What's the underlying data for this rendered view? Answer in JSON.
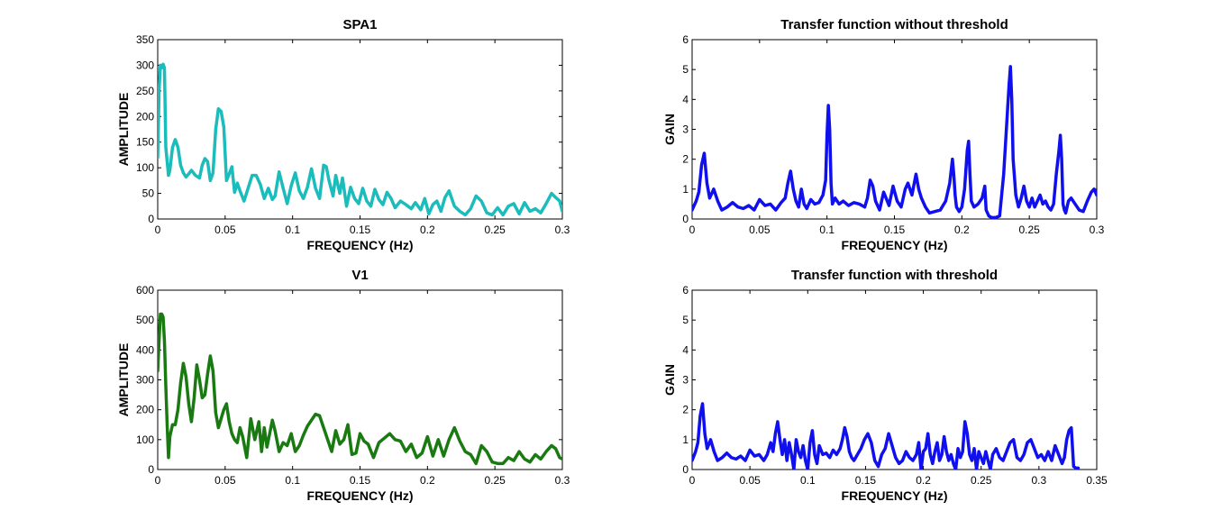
{
  "colors": {
    "spa1": "#1abcbc",
    "v1": "#1a7a12",
    "transfer": "#1010ee"
  },
  "chart_data": [
    {
      "type": "line",
      "title": "SPA1",
      "xlabel": "FREQUENCY (Hz)",
      "ylabel": "AMPLITUDE",
      "xlim": [
        0,
        0.3
      ],
      "ylim": [
        0,
        350
      ],
      "xticks": [
        "0",
        "0.05",
        "0.1",
        "0.15",
        "0.2",
        "0.25",
        "0.3"
      ],
      "yticks": [
        "0",
        "50",
        "100",
        "150",
        "200",
        "250",
        "300",
        "350"
      ],
      "grid": false,
      "series": [
        {
          "color_key": "spa1",
          "x": [
            0,
            0.001,
            0.002,
            0.003,
            0.004,
            0.005,
            0.006,
            0.008,
            0.009,
            0.011,
            0.013,
            0.015,
            0.017,
            0.019,
            0.021,
            0.023,
            0.025,
            0.028,
            0.031,
            0.033,
            0.035,
            0.037,
            0.039,
            0.041,
            0.043,
            0.045,
            0.047,
            0.049,
            0.051,
            0.053,
            0.055,
            0.057,
            0.059,
            0.061,
            0.064,
            0.067,
            0.07,
            0.073,
            0.076,
            0.079,
            0.082,
            0.085,
            0.087,
            0.09,
            0.093,
            0.096,
            0.099,
            0.102,
            0.105,
            0.108,
            0.111,
            0.114,
            0.117,
            0.12,
            0.123,
            0.125,
            0.127,
            0.13,
            0.132,
            0.135,
            0.137,
            0.14,
            0.143,
            0.146,
            0.149,
            0.152,
            0.155,
            0.158,
            0.161,
            0.164,
            0.167,
            0.17,
            0.173,
            0.176,
            0.18,
            0.184,
            0.188,
            0.191,
            0.195,
            0.198,
            0.201,
            0.204,
            0.207,
            0.21,
            0.213,
            0.216,
            0.22,
            0.224,
            0.228,
            0.232,
            0.236,
            0.24,
            0.244,
            0.248,
            0.252,
            0.256,
            0.26,
            0.264,
            0.268,
            0.272,
            0.276,
            0.28,
            0.284,
            0.288,
            0.292,
            0.295,
            0.298,
            0.3
          ],
          "y": [
            120,
            250,
            300,
            295,
            302,
            295,
            140,
            85,
            95,
            140,
            155,
            140,
            105,
            90,
            82,
            88,
            95,
            85,
            80,
            105,
            118,
            112,
            75,
            90,
            175,
            215,
            210,
            180,
            75,
            88,
            102,
            52,
            70,
            55,
            35,
            60,
            85,
            85,
            68,
            40,
            60,
            38,
            45,
            92,
            60,
            30,
            65,
            90,
            55,
            40,
            62,
            98,
            60,
            40,
            105,
            102,
            75,
            45,
            85,
            50,
            80,
            25,
            62,
            40,
            30,
            60,
            35,
            25,
            58,
            38,
            28,
            52,
            40,
            22,
            35,
            28,
            20,
            32,
            18,
            40,
            10,
            28,
            35,
            15,
            42,
            55,
            25,
            15,
            8,
            20,
            45,
            35,
            12,
            8,
            22,
            8,
            25,
            30,
            10,
            32,
            15,
            20,
            12,
            30,
            50,
            42,
            35,
            15
          ]
        }
      ]
    },
    {
      "type": "line",
      "title": "Transfer function without threshold",
      "xlabel": "FREQUENCY (Hz)",
      "ylabel": "GAIN",
      "xlim": [
        0,
        0.3
      ],
      "ylim": [
        0,
        6
      ],
      "xticks": [
        "0",
        "0.05",
        "0.1",
        "0.15",
        "0.2",
        "0.25",
        "0.3"
      ],
      "yticks": [
        "0",
        "1",
        "2",
        "3",
        "4",
        "5",
        "6"
      ],
      "grid": false,
      "series": [
        {
          "color_key": "transfer",
          "x": [
            0,
            0.003,
            0.005,
            0.007,
            0.009,
            0.011,
            0.013,
            0.016,
            0.019,
            0.022,
            0.026,
            0.03,
            0.034,
            0.038,
            0.042,
            0.046,
            0.05,
            0.054,
            0.058,
            0.062,
            0.066,
            0.069,
            0.071,
            0.073,
            0.075,
            0.077,
            0.079,
            0.081,
            0.083,
            0.085,
            0.088,
            0.091,
            0.094,
            0.097,
            0.099,
            0.1,
            0.101,
            0.102,
            0.103,
            0.104,
            0.106,
            0.109,
            0.112,
            0.116,
            0.12,
            0.124,
            0.128,
            0.13,
            0.132,
            0.134,
            0.136,
            0.139,
            0.142,
            0.146,
            0.149,
            0.152,
            0.155,
            0.158,
            0.16,
            0.163,
            0.166,
            0.168,
            0.17,
            0.173,
            0.176,
            0.18,
            0.184,
            0.188,
            0.191,
            0.193,
            0.194,
            0.195,
            0.196,
            0.198,
            0.2,
            0.202,
            0.204,
            0.205,
            0.206,
            0.207,
            0.209,
            0.212,
            0.215,
            0.217,
            0.218,
            0.22,
            0.222,
            0.225,
            0.228,
            0.231,
            0.233,
            0.235,
            0.236,
            0.237,
            0.238,
            0.24,
            0.242,
            0.244,
            0.246,
            0.248,
            0.25,
            0.252,
            0.254,
            0.256,
            0.258,
            0.26,
            0.262,
            0.264,
            0.266,
            0.268,
            0.27,
            0.272,
            0.273,
            0.274,
            0.275,
            0.276,
            0.277,
            0.279,
            0.281,
            0.284,
            0.287,
            0.29,
            0.293,
            0.296,
            0.298,
            0.3
          ],
          "y": [
            0.3,
            0.6,
            0.9,
            1.8,
            2.2,
            1.2,
            0.7,
            1.0,
            0.6,
            0.3,
            0.4,
            0.55,
            0.4,
            0.35,
            0.45,
            0.3,
            0.65,
            0.45,
            0.5,
            0.3,
            0.55,
            0.7,
            1.2,
            1.6,
            1.0,
            0.6,
            0.4,
            1.0,
            0.5,
            0.35,
            0.65,
            0.5,
            0.55,
            0.8,
            1.3,
            2.8,
            3.8,
            3.0,
            1.2,
            0.5,
            0.7,
            0.5,
            0.6,
            0.45,
            0.55,
            0.5,
            0.4,
            0.7,
            1.3,
            1.1,
            0.6,
            0.3,
            0.9,
            0.45,
            1.1,
            0.6,
            0.4,
            1.0,
            1.2,
            0.8,
            1.5,
            1.0,
            0.7,
            0.4,
            0.2,
            0.25,
            0.3,
            0.6,
            1.2,
            2.0,
            1.5,
            0.8,
            0.4,
            0.25,
            0.4,
            1.0,
            2.3,
            2.6,
            1.5,
            0.6,
            0.4,
            0.5,
            0.7,
            1.1,
            0.3,
            0.1,
            0.05,
            0.05,
            0.1,
            1.5,
            3.0,
            4.5,
            5.1,
            4.0,
            2.0,
            0.8,
            0.4,
            0.7,
            1.1,
            0.6,
            0.4,
            0.7,
            0.4,
            0.6,
            0.8,
            0.5,
            0.6,
            0.4,
            0.3,
            0.5,
            1.5,
            2.3,
            2.8,
            2.0,
            0.5,
            0.3,
            0.2,
            0.6,
            0.7,
            0.5,
            0.3,
            0.25,
            0.6,
            0.9,
            1.0,
            0.8
          ]
        }
      ]
    },
    {
      "type": "line",
      "title": "V1",
      "xlabel": "FREQUENCY (Hz)",
      "ylabel": "AMPLITUDE",
      "xlim": [
        0,
        0.3
      ],
      "ylim": [
        0,
        600
      ],
      "xticks": [
        "0",
        "0.05",
        "0.1",
        "0.15",
        "0.2",
        "0.25",
        "0.3"
      ],
      "yticks": [
        "0",
        "100",
        "200",
        "300",
        "400",
        "500",
        "600"
      ],
      "grid": false,
      "series": [
        {
          "color_key": "v1",
          "x": [
            0,
            0.001,
            0.002,
            0.003,
            0.004,
            0.005,
            0.006,
            0.007,
            0.008,
            0.009,
            0.011,
            0.013,
            0.015,
            0.017,
            0.019,
            0.021,
            0.023,
            0.025,
            0.027,
            0.029,
            0.031,
            0.033,
            0.035,
            0.037,
            0.039,
            0.041,
            0.043,
            0.045,
            0.047,
            0.049,
            0.051,
            0.053,
            0.055,
            0.057,
            0.059,
            0.061,
            0.063,
            0.066,
            0.069,
            0.072,
            0.075,
            0.077,
            0.079,
            0.081,
            0.083,
            0.085,
            0.087,
            0.09,
            0.093,
            0.096,
            0.099,
            0.102,
            0.105,
            0.108,
            0.111,
            0.114,
            0.117,
            0.12,
            0.123,
            0.126,
            0.129,
            0.132,
            0.135,
            0.138,
            0.141,
            0.144,
            0.147,
            0.15,
            0.153,
            0.156,
            0.16,
            0.164,
            0.168,
            0.172,
            0.176,
            0.18,
            0.184,
            0.188,
            0.192,
            0.196,
            0.2,
            0.204,
            0.208,
            0.212,
            0.216,
            0.22,
            0.224,
            0.228,
            0.232,
            0.236,
            0.24,
            0.244,
            0.248,
            0.252,
            0.256,
            0.26,
            0.264,
            0.268,
            0.272,
            0.276,
            0.28,
            0.284,
            0.288,
            0.292,
            0.295,
            0.298,
            0.3
          ],
          "y": [
            330,
            430,
            520,
            520,
            510,
            430,
            280,
            150,
            40,
            110,
            150,
            150,
            200,
            290,
            355,
            310,
            220,
            160,
            240,
            350,
            300,
            240,
            250,
            320,
            380,
            330,
            190,
            140,
            170,
            200,
            220,
            160,
            120,
            100,
            90,
            140,
            110,
            40,
            170,
            100,
            160,
            60,
            140,
            75,
            120,
            165,
            130,
            60,
            90,
            80,
            120,
            60,
            80,
            115,
            145,
            165,
            185,
            180,
            140,
            100,
            60,
            130,
            85,
            100,
            150,
            50,
            55,
            120,
            95,
            85,
            40,
            90,
            105,
            120,
            100,
            95,
            60,
            85,
            40,
            55,
            110,
            45,
            100,
            45,
            100,
            140,
            95,
            60,
            50,
            20,
            80,
            60,
            25,
            20,
            20,
            40,
            30,
            60,
            35,
            25,
            50,
            35,
            60,
            80,
            70,
            40,
            35
          ]
        }
      ]
    },
    {
      "type": "line",
      "title": "Transfer function with threshold",
      "xlabel": "FREQUENCY (Hz)",
      "ylabel": "GAIN",
      "xlim": [
        0,
        0.35
      ],
      "ylim": [
        0,
        6
      ],
      "xticks": [
        "0",
        "0.05",
        "0.1",
        "0.15",
        "0.2",
        "0.25",
        "0.3",
        "0.35"
      ],
      "yticks": [
        "0",
        "1",
        "2",
        "3",
        "4",
        "5",
        "6"
      ],
      "grid": false,
      "series": [
        {
          "color_key": "transfer",
          "x": [
            0,
            0.003,
            0.005,
            0.007,
            0.009,
            0.011,
            0.013,
            0.016,
            0.019,
            0.022,
            0.026,
            0.03,
            0.034,
            0.038,
            0.042,
            0.046,
            0.05,
            0.054,
            0.058,
            0.062,
            0.065,
            0.068,
            0.07,
            0.072,
            0.074,
            0.076,
            0.078,
            0.08,
            0.082,
            0.084,
            0.086,
            0.088,
            0.09,
            0.092,
            0.094,
            0.096,
            0.098,
            0.1,
            0.102,
            0.104,
            0.106,
            0.108,
            0.11,
            0.113,
            0.116,
            0.119,
            0.122,
            0.125,
            0.128,
            0.13,
            0.132,
            0.134,
            0.136,
            0.138,
            0.14,
            0.143,
            0.146,
            0.149,
            0.152,
            0.155,
            0.158,
            0.161,
            0.164,
            0.167,
            0.17,
            0.173,
            0.176,
            0.179,
            0.182,
            0.185,
            0.188,
            0.191,
            0.194,
            0.196,
            0.198,
            0.2,
            0.202,
            0.204,
            0.206,
            0.208,
            0.21,
            0.212,
            0.214,
            0.216,
            0.218,
            0.22,
            0.222,
            0.224,
            0.226,
            0.228,
            0.23,
            0.232,
            0.234,
            0.236,
            0.238,
            0.24,
            0.242,
            0.244,
            0.246,
            0.248,
            0.25,
            0.252,
            0.254,
            0.256,
            0.258,
            0.26,
            0.263,
            0.266,
            0.269,
            0.272,
            0.275,
            0.278,
            0.281,
            0.284,
            0.287,
            0.29,
            0.293,
            0.296,
            0.299,
            0.302,
            0.305,
            0.308,
            0.311,
            0.314,
            0.317,
            0.32,
            0.322,
            0.324,
            0.326,
            0.328,
            0.33,
            0.332,
            0.334
          ],
          "y": [
            0.3,
            0.6,
            0.9,
            1.8,
            2.2,
            1.2,
            0.7,
            1.0,
            0.6,
            0.3,
            0.4,
            0.55,
            0.4,
            0.35,
            0.45,
            0.3,
            0.65,
            0.45,
            0.5,
            0.3,
            0.5,
            0.9,
            0.6,
            1.2,
            1.6,
            1.0,
            0.5,
            1.0,
            0.3,
            0.9,
            0.5,
            0.0,
            1.0,
            0.6,
            0.4,
            0.8,
            0.3,
            0.0,
            0.9,
            1.3,
            0.5,
            0.2,
            0.8,
            0.5,
            0.55,
            0.4,
            0.65,
            0.5,
            0.7,
            1.0,
            1.4,
            1.1,
            0.6,
            0.4,
            0.3,
            0.5,
            0.7,
            1.0,
            1.2,
            0.9,
            0.3,
            0.1,
            0.5,
            0.7,
            1.2,
            0.8,
            0.4,
            0.2,
            0.3,
            0.6,
            0.4,
            0.3,
            0.5,
            0.9,
            0.0,
            0.6,
            0.7,
            1.2,
            0.5,
            0.2,
            0.6,
            0.9,
            0.3,
            0.5,
            1.1,
            0.6,
            0.3,
            0.5,
            0.2,
            0.0,
            0.7,
            0.4,
            0.6,
            1.6,
            1.2,
            0.5,
            0.3,
            0.7,
            0.0,
            0.6,
            0.4,
            0.2,
            0.6,
            0.3,
            0.0,
            0.5,
            0.7,
            0.4,
            0.3,
            0.6,
            0.9,
            1.0,
            0.4,
            0.3,
            0.5,
            0.9,
            1.0,
            0.7,
            0.4,
            0.5,
            0.3,
            0.6,
            0.3,
            0.8,
            0.5,
            0.2,
            0.4,
            1.0,
            1.3,
            1.4,
            0.1,
            0.05,
            0.05
          ]
        }
      ]
    }
  ]
}
